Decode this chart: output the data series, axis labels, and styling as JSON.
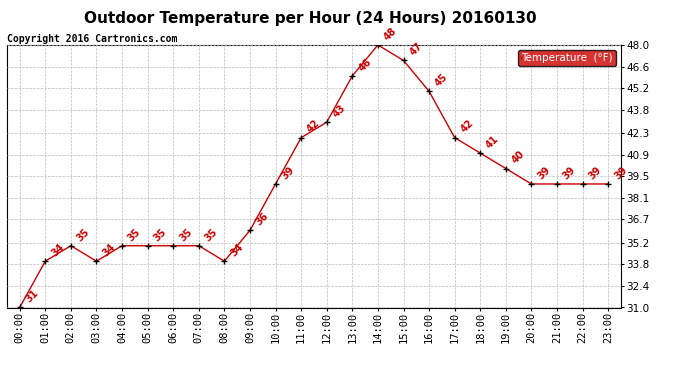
{
  "title": "Outdoor Temperature per Hour (24 Hours) 20160130",
  "copyright": "Copyright 2016 Cartronics.com",
  "legend_label": "Temperature  (°F)",
  "hours": [
    "00:00",
    "01:00",
    "02:00",
    "03:00",
    "04:00",
    "05:00",
    "06:00",
    "07:00",
    "08:00",
    "09:00",
    "10:00",
    "11:00",
    "12:00",
    "13:00",
    "14:00",
    "15:00",
    "16:00",
    "17:00",
    "18:00",
    "19:00",
    "20:00",
    "21:00",
    "22:00",
    "23:00"
  ],
  "temps": [
    31,
    34,
    35,
    34,
    35,
    35,
    35,
    35,
    34,
    36,
    39,
    42,
    43,
    46,
    48,
    47,
    45,
    42,
    41,
    40,
    39,
    39,
    39,
    39
  ],
  "ylim": [
    31.0,
    48.0
  ],
  "yticks": [
    31.0,
    32.4,
    33.8,
    35.2,
    36.7,
    38.1,
    39.5,
    40.9,
    42.3,
    43.8,
    45.2,
    46.6,
    48.0
  ],
  "line_color": "#cc0000",
  "marker_color": "#000000",
  "bg_color": "#ffffff",
  "grid_color": "#bbbbbb",
  "label_color": "#cc0000",
  "legend_bg": "#cc0000",
  "legend_fg": "#ffffff",
  "title_fontsize": 11,
  "copyright_fontsize": 7,
  "tick_fontsize": 7.5,
  "label_fontsize": 7
}
